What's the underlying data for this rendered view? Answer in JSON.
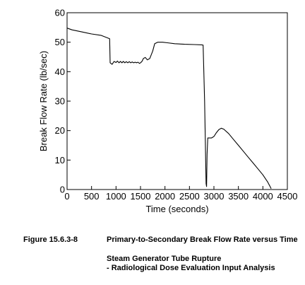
{
  "figure": {
    "number": "Figure 15.6.3-8",
    "title": "Primary-to-Secondary Break Flow Rate versus Time",
    "subtitle_line1": "Steam Generator Tube Rupture",
    "subtitle_line2": "- Radiological Dose Evaluation Input Analysis"
  },
  "chart_data": {
    "type": "line",
    "title": "",
    "xlabel": "Time (seconds)",
    "ylabel": "Break Flow Rate (lb/sec)",
    "xlim": [
      0,
      4500
    ],
    "ylim": [
      0,
      60
    ],
    "xticks": [
      0,
      500,
      1000,
      1500,
      2000,
      2500,
      3000,
      3500,
      4000,
      4500
    ],
    "yticks": [
      0,
      10,
      20,
      30,
      40,
      50,
      60
    ],
    "grid": false,
    "series": [
      {
        "points": [
          [
            0,
            54.8
          ],
          [
            100,
            54.2
          ],
          [
            300,
            53.5
          ],
          [
            500,
            52.8
          ],
          [
            700,
            52.3
          ],
          [
            870,
            51.2
          ],
          [
            880,
            43.0
          ],
          [
            920,
            42.5
          ],
          [
            960,
            43.5
          ],
          [
            1000,
            43.1
          ],
          [
            1030,
            43.6
          ],
          [
            1060,
            43.0
          ],
          [
            1090,
            43.5
          ],
          [
            1120,
            43.0
          ],
          [
            1150,
            43.5
          ],
          [
            1180,
            43.0
          ],
          [
            1210,
            43.4
          ],
          [
            1240,
            43.0
          ],
          [
            1270,
            43.4
          ],
          [
            1300,
            43.0
          ],
          [
            1330,
            43.3
          ],
          [
            1360,
            43.0
          ],
          [
            1390,
            43.2
          ],
          [
            1420,
            43.0
          ],
          [
            1450,
            43.2
          ],
          [
            1480,
            42.8
          ],
          [
            1500,
            43.0
          ],
          [
            1530,
            43.5
          ],
          [
            1560,
            44.5
          ],
          [
            1600,
            44.8
          ],
          [
            1640,
            44.0
          ],
          [
            1690,
            44.5
          ],
          [
            1750,
            47.0
          ],
          [
            1790,
            49.5
          ],
          [
            1850,
            50.0
          ],
          [
            1950,
            50.0
          ],
          [
            2050,
            49.8
          ],
          [
            2200,
            49.5
          ],
          [
            2400,
            49.3
          ],
          [
            2600,
            49.2
          ],
          [
            2750,
            49.1
          ],
          [
            2780,
            49.0
          ],
          [
            2810,
            30.0
          ],
          [
            2840,
            2.0
          ],
          [
            2850,
            1.0
          ],
          [
            2860,
            12.0
          ],
          [
            2875,
            17.5
          ],
          [
            2950,
            17.5
          ],
          [
            3000,
            18.0
          ],
          [
            3050,
            19.3
          ],
          [
            3100,
            20.3
          ],
          [
            3150,
            20.8
          ],
          [
            3200,
            20.5
          ],
          [
            3300,
            19.0
          ],
          [
            3400,
            17.0
          ],
          [
            3500,
            15.0
          ],
          [
            3600,
            13.0
          ],
          [
            3700,
            11.0
          ],
          [
            3800,
            9.0
          ],
          [
            3900,
            7.0
          ],
          [
            4000,
            5.0
          ],
          [
            4100,
            2.5
          ],
          [
            4170,
            0.3
          ]
        ]
      }
    ]
  }
}
